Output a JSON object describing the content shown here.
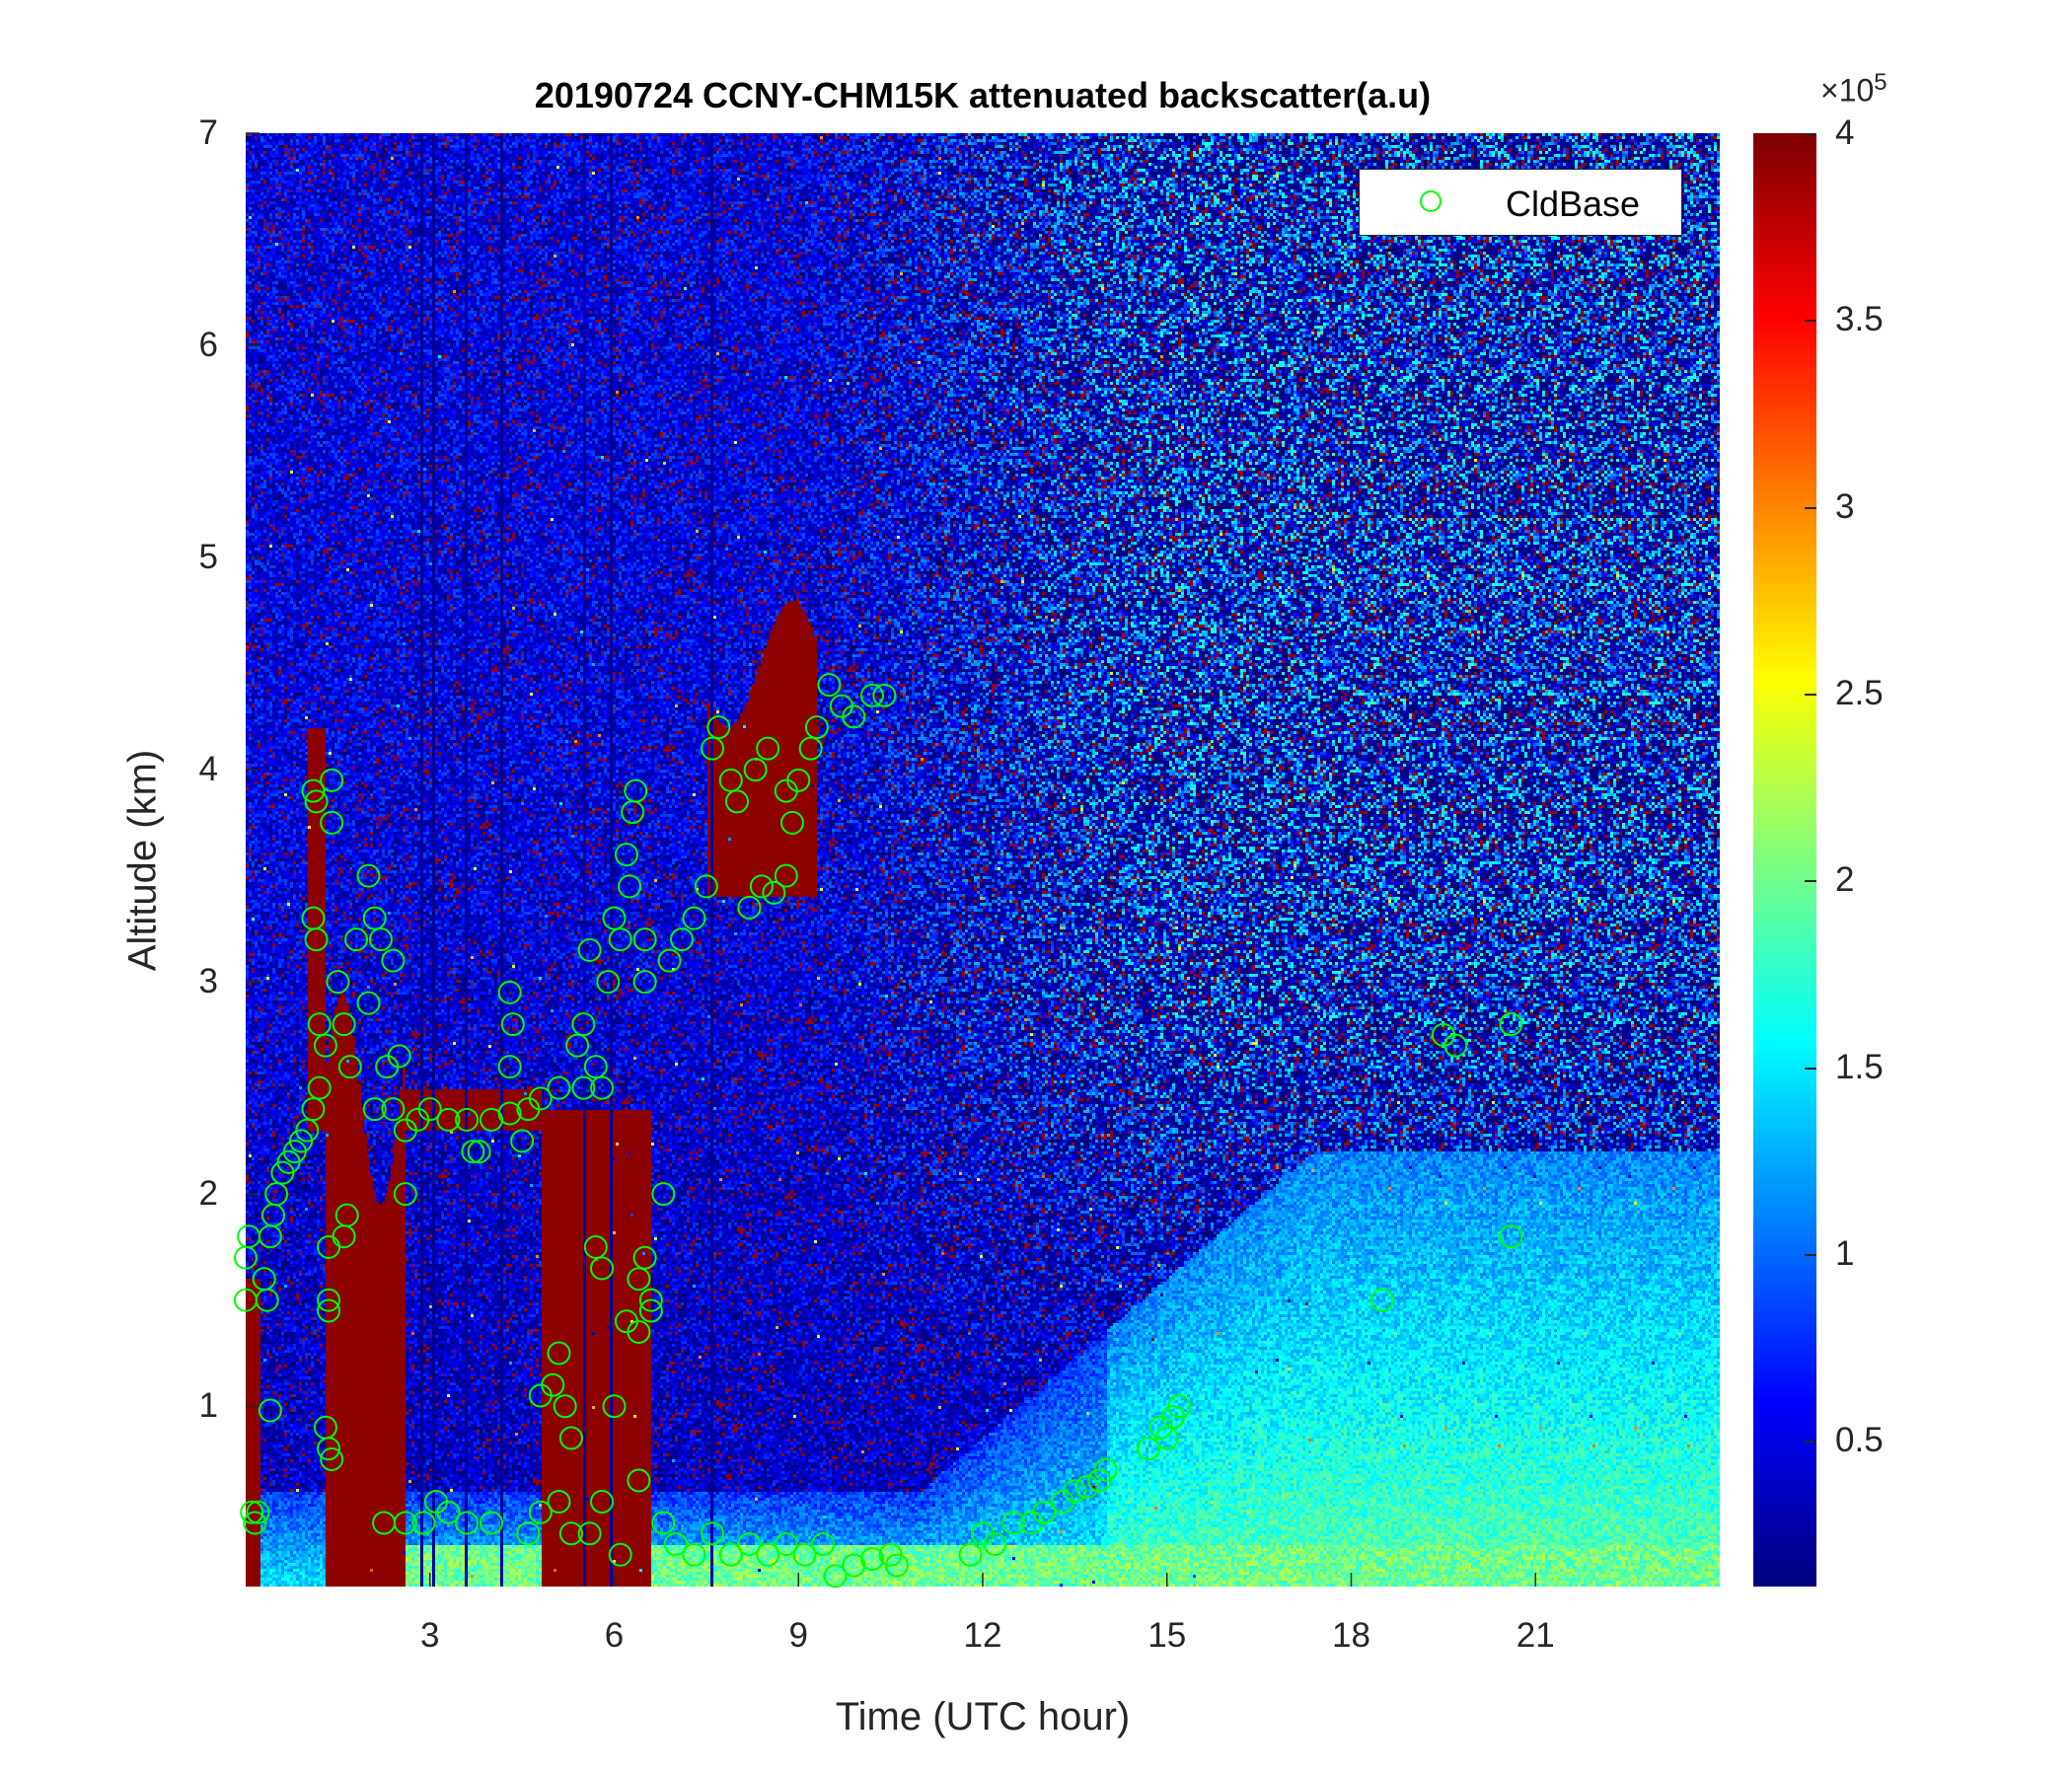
{
  "chart_data": {
    "type": "heatmap",
    "title": "20190724 CCNY-CHM15K attenuated backscatter(a.u)",
    "xlabel": "Time (UTC hour)",
    "ylabel": "Altitude (km)",
    "xlim": [
      0,
      24
    ],
    "ylim": [
      0.15,
      7
    ],
    "xticks": [
      3,
      6,
      9,
      12,
      15,
      18,
      21
    ],
    "yticks": [
      1,
      2,
      3,
      4,
      5,
      6,
      7
    ],
    "colorbar": {
      "colormap": "jet",
      "clim": [
        0.11,
        4
      ],
      "ticks": [
        0.5,
        1,
        1.5,
        2,
        2.5,
        3,
        3.5,
        4
      ],
      "exponent_label": "×10",
      "exponent": "5"
    },
    "legend": {
      "placement": "top-right",
      "entries": [
        "CldBase"
      ]
    },
    "marker_color": "#00ff00",
    "series": [
      {
        "name": "CldBase",
        "type": "scatter",
        "marker": "circle",
        "points": [
          [
            0,
            1.5
          ],
          [
            0,
            1.7
          ],
          [
            0.05,
            1.8
          ],
          [
            0.1,
            0.5
          ],
          [
            0.15,
            0.45
          ],
          [
            0.2,
            0.5
          ],
          [
            0.3,
            1.6
          ],
          [
            0.35,
            1.5
          ],
          [
            0.4,
            1.8
          ],
          [
            0.45,
            1.9
          ],
          [
            0.5,
            2.0
          ],
          [
            0.6,
            2.1
          ],
          [
            0.7,
            2.15
          ],
          [
            0.8,
            2.2
          ],
          [
            0.9,
            2.25
          ],
          [
            1.0,
            2.3
          ],
          [
            1.1,
            2.4
          ],
          [
            1.2,
            2.5
          ],
          [
            0.4,
            0.98
          ],
          [
            1.1,
            3.9
          ],
          [
            1.15,
            3.85
          ],
          [
            1.4,
            3.95
          ],
          [
            1.4,
            3.75
          ],
          [
            1.1,
            3.3
          ],
          [
            1.15,
            3.2
          ],
          [
            1.2,
            2.8
          ],
          [
            1.3,
            2.7
          ],
          [
            1.35,
            1.75
          ],
          [
            1.35,
            1.5
          ],
          [
            1.35,
            1.45
          ],
          [
            1.3,
            0.9
          ],
          [
            1.35,
            0.8
          ],
          [
            1.4,
            0.75
          ],
          [
            1.5,
            3.0
          ],
          [
            1.6,
            2.8
          ],
          [
            1.7,
            2.6
          ],
          [
            1.8,
            3.2
          ],
          [
            1.65,
            1.9
          ],
          [
            1.6,
            1.8
          ],
          [
            2.0,
            3.5
          ],
          [
            2.1,
            3.3
          ],
          [
            2.2,
            3.2
          ],
          [
            2.4,
            3.1
          ],
          [
            2.0,
            2.9
          ],
          [
            2.3,
            2.6
          ],
          [
            2.5,
            2.65
          ],
          [
            2.1,
            2.4
          ],
          [
            2.4,
            2.4
          ],
          [
            2.6,
            2.3
          ],
          [
            2.6,
            2.0
          ],
          [
            2.25,
            0.45
          ],
          [
            2.8,
            2.35
          ],
          [
            3.0,
            2.4
          ],
          [
            3.3,
            2.35
          ],
          [
            3.6,
            2.35
          ],
          [
            3.8,
            2.2
          ],
          [
            4.0,
            2.35
          ],
          [
            4.3,
            2.38
          ],
          [
            4.6,
            2.4
          ],
          [
            4.8,
            2.45
          ],
          [
            5.1,
            2.5
          ],
          [
            5.5,
            2.5
          ],
          [
            5.8,
            2.5
          ],
          [
            4.3,
            2.95
          ],
          [
            4.35,
            2.8
          ],
          [
            4.3,
            2.6
          ],
          [
            3.7,
            2.2
          ],
          [
            4.5,
            2.25
          ],
          [
            2.6,
            0.45
          ],
          [
            2.9,
            0.45
          ],
          [
            3.1,
            0.55
          ],
          [
            3.3,
            0.5
          ],
          [
            3.6,
            0.45
          ],
          [
            4.0,
            0.45
          ],
          [
            4.6,
            0.4
          ],
          [
            4.8,
            0.5
          ],
          [
            5.1,
            0.55
          ],
          [
            5.3,
            0.4
          ],
          [
            5.6,
            0.4
          ],
          [
            5.8,
            0.55
          ],
          [
            6.1,
            0.3
          ],
          [
            6.4,
            0.65
          ],
          [
            4.8,
            1.05
          ],
          [
            5.0,
            1.1
          ],
          [
            5.1,
            1.25
          ],
          [
            5.2,
            1.0
          ],
          [
            5.3,
            0.85
          ],
          [
            5.4,
            2.7
          ],
          [
            5.5,
            2.8
          ],
          [
            5.6,
            3.15
          ],
          [
            5.7,
            2.6
          ],
          [
            5.9,
            3.0
          ],
          [
            6.0,
            3.3
          ],
          [
            6.1,
            3.2
          ],
          [
            6.2,
            3.6
          ],
          [
            6.3,
            3.8
          ],
          [
            6.35,
            3.9
          ],
          [
            6.25,
            3.45
          ],
          [
            5.7,
            1.75
          ],
          [
            5.8,
            1.65
          ],
          [
            6.0,
            1.0
          ],
          [
            6.2,
            1.4
          ],
          [
            6.4,
            1.6
          ],
          [
            6.5,
            1.7
          ],
          [
            6.6,
            1.5
          ],
          [
            6.4,
            1.35
          ],
          [
            6.6,
            1.45
          ],
          [
            6.5,
            3.0
          ],
          [
            6.5,
            3.2
          ],
          [
            6.9,
            3.1
          ],
          [
            7.1,
            3.2
          ],
          [
            7.3,
            3.3
          ],
          [
            7.5,
            3.45
          ],
          [
            7.6,
            4.1
          ],
          [
            7.7,
            4.2
          ],
          [
            7.9,
            3.95
          ],
          [
            8.0,
            3.85
          ],
          [
            8.2,
            3.35
          ],
          [
            8.4,
            3.45
          ],
          [
            8.6,
            3.42
          ],
          [
            8.8,
            3.5
          ],
          [
            8.3,
            4.0
          ],
          [
            8.5,
            4.1
          ],
          [
            8.8,
            3.9
          ],
          [
            8.9,
            3.75
          ],
          [
            9.0,
            3.95
          ],
          [
            9.2,
            4.1
          ],
          [
            9.3,
            4.2
          ],
          [
            9.5,
            4.4
          ],
          [
            9.7,
            4.3
          ],
          [
            9.9,
            4.25
          ],
          [
            10.2,
            4.35
          ],
          [
            10.4,
            4.35
          ],
          [
            6.8,
            2.0
          ],
          [
            6.8,
            0.45
          ],
          [
            7.0,
            0.35
          ],
          [
            7.3,
            0.3
          ],
          [
            7.6,
            0.4
          ],
          [
            7.9,
            0.3
          ],
          [
            8.2,
            0.35
          ],
          [
            8.5,
            0.3
          ],
          [
            8.8,
            0.35
          ],
          [
            9.1,
            0.3
          ],
          [
            9.4,
            0.35
          ],
          [
            9.6,
            0.2
          ],
          [
            9.9,
            0.25
          ],
          [
            10.2,
            0.28
          ],
          [
            10.5,
            0.3
          ],
          [
            10.6,
            0.25
          ],
          [
            11.8,
            0.3
          ],
          [
            12.0,
            0.4
          ],
          [
            12.2,
            0.35
          ],
          [
            12.5,
            0.45
          ],
          [
            12.8,
            0.45
          ],
          [
            13.0,
            0.5
          ],
          [
            13.3,
            0.55
          ],
          [
            13.5,
            0.6
          ],
          [
            13.7,
            0.62
          ],
          [
            13.9,
            0.65
          ],
          [
            14.0,
            0.7
          ],
          [
            14.7,
            0.8
          ],
          [
            14.9,
            0.9
          ],
          [
            15.0,
            0.85
          ],
          [
            15.1,
            0.95
          ],
          [
            15.2,
            1.0
          ],
          [
            18.5,
            1.5
          ],
          [
            19.5,
            2.75
          ],
          [
            19.7,
            2.7
          ],
          [
            20.6,
            2.8
          ],
          [
            20.6,
            1.8
          ]
        ]
      }
    ]
  }
}
